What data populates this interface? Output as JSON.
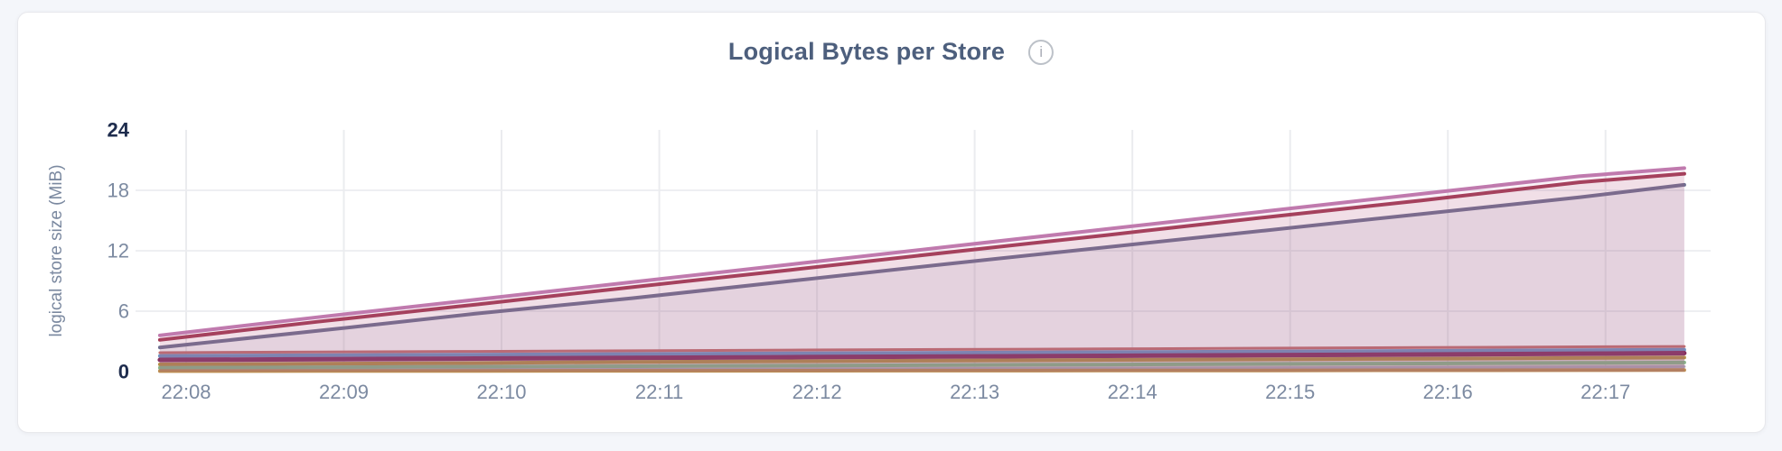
{
  "page": {
    "background": "#F4F6FA"
  },
  "card": {
    "background": "#FFFFFF",
    "border_color": "#E7E8EC"
  },
  "header": {
    "info_icon_glyph": "i",
    "info_icon_name": "info-circle-icon"
  },
  "chart_data": {
    "type": "area",
    "title": "Logical Bytes per Store",
    "ylabel": "logical store size (MiB)",
    "xlabel": "",
    "ylim": [
      0,
      24
    ],
    "grid": true,
    "legend": "none",
    "title_color": "#4D5F7D",
    "axis_label_color": "#7C8AA1",
    "axis_strong_label_color": "#1E2C4D",
    "grid_color": "#EBECEF",
    "fill_opacity": 0.1,
    "y_tick_labels_top_to_bottom": [
      "24",
      "18",
      "12",
      "6",
      "0"
    ],
    "x_tick_labels": [
      "22:08",
      "22:09",
      "22:10",
      "22:11",
      "22:12",
      "22:13",
      "22:14",
      "22:15",
      "22:16",
      "22:17"
    ],
    "x_tick_seconds": [
      0,
      60,
      120,
      180,
      240,
      300,
      360,
      420,
      480,
      540
    ],
    "x_data_range_seconds_rel_22_08": [
      -10,
      570
    ],
    "series": [
      {
        "name": "series-1-salmon",
        "color": "#C4706F",
        "width": 3,
        "points": [
          [
            -10,
            1.88
          ],
          [
            50,
            1.95
          ],
          [
            110,
            2.01
          ],
          [
            170,
            2.07
          ],
          [
            230,
            2.14
          ],
          [
            290,
            2.2
          ],
          [
            350,
            2.26
          ],
          [
            410,
            2.33
          ],
          [
            470,
            2.39
          ],
          [
            530,
            2.46
          ],
          [
            570,
            2.5
          ]
        ]
      },
      {
        "name": "series-2-blue",
        "color": "#7292C2",
        "width": 4,
        "points": [
          [
            -10,
            1.56
          ],
          [
            50,
            1.62
          ],
          [
            110,
            1.68
          ],
          [
            170,
            1.75
          ],
          [
            230,
            1.81
          ],
          [
            290,
            1.87
          ],
          [
            350,
            1.93
          ],
          [
            410,
            2.0
          ],
          [
            470,
            2.06
          ],
          [
            530,
            2.13
          ],
          [
            570,
            2.18
          ]
        ]
      },
      {
        "name": "series-3-magenta",
        "color": "#86305F",
        "width": 5,
        "points": [
          [
            -10,
            1.16
          ],
          [
            50,
            1.23
          ],
          [
            110,
            1.3
          ],
          [
            170,
            1.37
          ],
          [
            230,
            1.43
          ],
          [
            290,
            1.5
          ],
          [
            350,
            1.57
          ],
          [
            410,
            1.64
          ],
          [
            470,
            1.7
          ],
          [
            530,
            1.78
          ],
          [
            570,
            1.84
          ]
        ]
      },
      {
        "name": "series-4-ochre",
        "color": "#B58F47",
        "width": 4,
        "points": [
          [
            -10,
            0.72
          ],
          [
            50,
            0.78
          ],
          [
            110,
            0.85
          ],
          [
            170,
            0.97
          ],
          [
            230,
            1.03
          ],
          [
            290,
            1.09
          ],
          [
            350,
            1.16
          ],
          [
            410,
            1.22
          ],
          [
            470,
            1.28
          ],
          [
            530,
            1.35
          ],
          [
            570,
            1.4
          ]
        ]
      },
      {
        "name": "series-5-green",
        "color": "#89B489",
        "width": 4,
        "points": [
          [
            -10,
            0.38
          ],
          [
            50,
            0.43
          ],
          [
            110,
            0.48
          ],
          [
            170,
            0.54
          ],
          [
            230,
            0.59
          ],
          [
            290,
            0.65
          ],
          [
            350,
            0.7
          ],
          [
            410,
            0.76
          ],
          [
            470,
            0.81
          ],
          [
            530,
            0.87
          ],
          [
            570,
            0.9
          ]
        ]
      },
      {
        "name": "series-6-lavender",
        "color": "#AFA3B3",
        "width": 3,
        "points": [
          [
            -10,
            0.1
          ],
          [
            50,
            0.14
          ],
          [
            110,
            0.18
          ],
          [
            170,
            0.22
          ],
          [
            230,
            0.26
          ],
          [
            290,
            0.3
          ],
          [
            350,
            0.34
          ],
          [
            410,
            0.38
          ],
          [
            470,
            0.42
          ],
          [
            530,
            0.47
          ],
          [
            570,
            0.5
          ]
        ]
      },
      {
        "name": "series-7-tan",
        "color": "#BC8D52",
        "width": 4,
        "points": [
          [
            -10,
            0.05
          ],
          [
            50,
            0.06
          ],
          [
            110,
            0.07
          ],
          [
            170,
            0.08
          ],
          [
            230,
            0.09
          ],
          [
            290,
            0.1
          ],
          [
            350,
            0.11
          ],
          [
            410,
            0.12
          ],
          [
            470,
            0.13
          ],
          [
            530,
            0.14
          ],
          [
            570,
            0.15
          ]
        ]
      },
      {
        "name": "series-8-slate",
        "color": "#6E7090",
        "width": 4,
        "points": [
          [
            -10,
            2.4
          ],
          [
            50,
            4.05
          ],
          [
            110,
            5.75
          ],
          [
            170,
            7.3
          ],
          [
            230,
            9.0
          ],
          [
            290,
            10.7
          ],
          [
            350,
            12.35
          ],
          [
            410,
            14.0
          ],
          [
            470,
            15.65
          ],
          [
            530,
            17.3
          ],
          [
            570,
            18.55
          ]
        ]
      },
      {
        "name": "series-9-crimson",
        "color": "#A23B54",
        "width": 4,
        "points": [
          [
            -10,
            3.15
          ],
          [
            50,
            4.95
          ],
          [
            110,
            6.65
          ],
          [
            170,
            8.4
          ],
          [
            230,
            10.1
          ],
          [
            290,
            11.85
          ],
          [
            350,
            13.55
          ],
          [
            410,
            15.3
          ],
          [
            470,
            17.0
          ],
          [
            530,
            18.8
          ],
          [
            570,
            19.65
          ]
        ]
      },
      {
        "name": "series-10-pink",
        "color": "#C07AAE",
        "width": 4,
        "points": [
          [
            -10,
            3.6
          ],
          [
            50,
            5.4
          ],
          [
            110,
            7.15
          ],
          [
            170,
            8.9
          ],
          [
            230,
            10.65
          ],
          [
            290,
            12.4
          ],
          [
            350,
            14.15
          ],
          [
            410,
            15.9
          ],
          [
            470,
            17.65
          ],
          [
            530,
            19.4
          ],
          [
            570,
            20.2
          ]
        ]
      }
    ]
  }
}
